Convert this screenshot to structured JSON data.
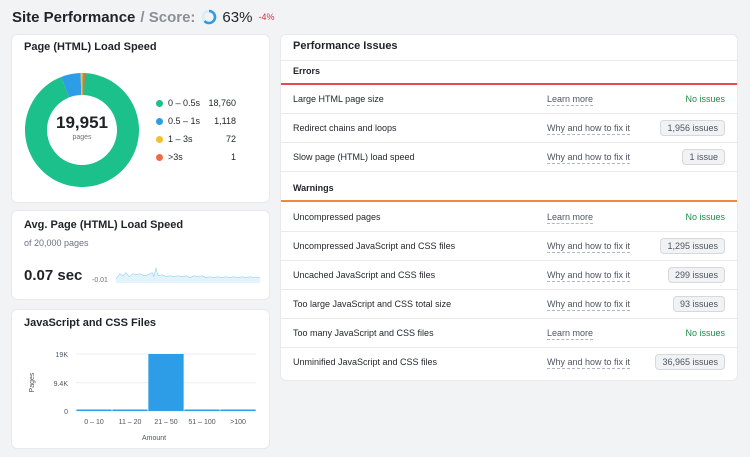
{
  "header": {
    "title": "Site Performance",
    "separator": "/ Score:",
    "score": "63%",
    "delta": "-4%",
    "score_value": 63
  },
  "load_speed": {
    "title": "Page (HTML) Load Speed",
    "total": "19,951",
    "total_label": "pages",
    "legend": [
      {
        "label": "0 – 0.5s",
        "value": "18,760",
        "color": "#1bc08a"
      },
      {
        "label": "0.5 – 1s",
        "value": "1,118",
        "color": "#2d9de8"
      },
      {
        "label": "1 – 3s",
        "value": "72",
        "color": "#f2c12e"
      },
      {
        "label": ">3s",
        "value": "1",
        "color": "#f06a46"
      }
    ]
  },
  "avg_speed": {
    "title": "Avg. Page (HTML) Load Speed",
    "subtitle": "of 20,000 pages",
    "value": "0.07 sec",
    "delta": "-0.01",
    "spark_color": "#7ec8ea"
  },
  "js_css": {
    "title": "JavaScript and CSS Files"
  },
  "chart_data": {
    "type": "bar",
    "categories": [
      "0 – 10",
      "11 – 20",
      "21 – 50",
      "51 – 100",
      ">100"
    ],
    "values": [
      0,
      0,
      19000,
      0,
      0
    ],
    "yticks": [
      "19K",
      "9.4K",
      "0"
    ],
    "ytick_values": [
      19000,
      9400,
      0
    ],
    "ylim": [
      0,
      19000
    ],
    "xlabel": "Amount",
    "ylabel": "Pages",
    "color": "#2d9de8"
  },
  "issues": {
    "title": "Performance Issues",
    "errors_label": "Errors",
    "warnings_label": "Warnings",
    "error_color": "#e5484d",
    "warning_color": "#f0883e",
    "errors": [
      {
        "name": "Large HTML page size",
        "link": "Learn more",
        "status": "No issues",
        "type": "ok"
      },
      {
        "name": "Redirect chains and loops",
        "link": "Why and how to fix it",
        "status": "1,956 issues",
        "type": "badge"
      },
      {
        "name": "Slow page (HTML) load speed",
        "link": "Why and how to fix it",
        "status": "1 issue",
        "type": "badge"
      }
    ],
    "warnings": [
      {
        "name": "Uncompressed pages",
        "link": "Learn more",
        "status": "No issues",
        "type": "ok"
      },
      {
        "name": "Uncompressed JavaScript and CSS files",
        "link": "Why and how to fix it",
        "status": "1,295 issues",
        "type": "badge"
      },
      {
        "name": "Uncached JavaScript and CSS files",
        "link": "Why and how to fix it",
        "status": "299 issues",
        "type": "badge"
      },
      {
        "name": "Too large JavaScript and CSS total size",
        "link": "Why and how to fix it",
        "status": "93 issues",
        "type": "badge"
      },
      {
        "name": "Too many JavaScript and CSS files",
        "link": "Learn more",
        "status": "No issues",
        "type": "ok"
      },
      {
        "name": "Unminified JavaScript and CSS files",
        "link": "Why and how to fix it",
        "status": "36,965 issues",
        "type": "badge"
      }
    ]
  }
}
